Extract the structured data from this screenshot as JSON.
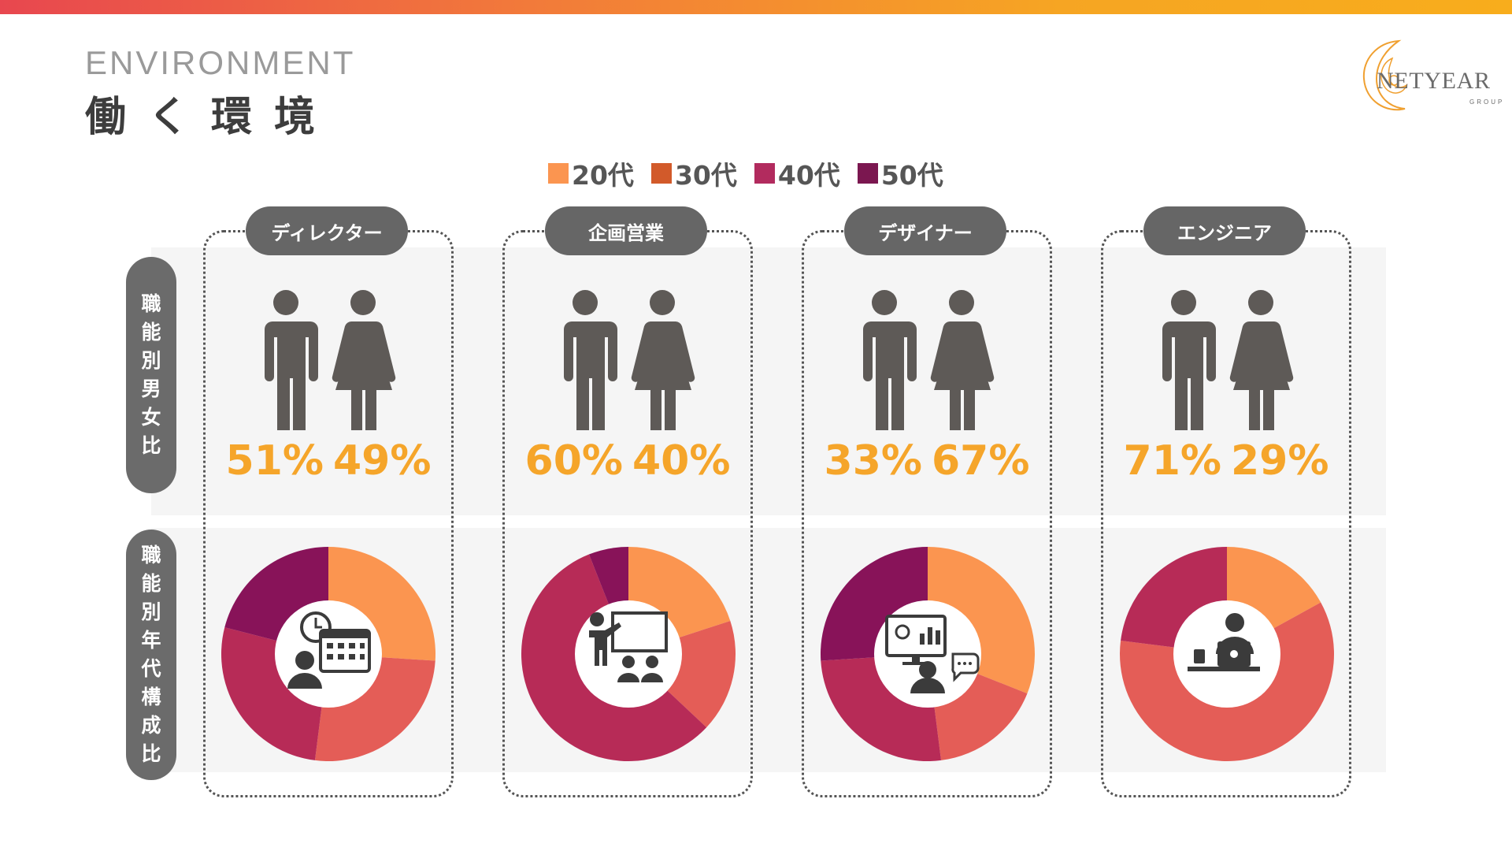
{
  "header": {
    "eyebrow": "ENVIRONMENT",
    "title": "働く環境",
    "logo_text": "NETYEAR",
    "logo_sub": "GROUP"
  },
  "legend": [
    {
      "label": "20代",
      "color": "#fb9550"
    },
    {
      "label": "30代",
      "color": "#d25a2a"
    },
    {
      "label": "40代",
      "color": "#b22b5e"
    },
    {
      "label": "50代",
      "color": "#7b1750"
    }
  ],
  "row_labels": {
    "gender": [
      "職",
      "能",
      "別",
      "男",
      "女",
      "比"
    ],
    "age": [
      "職",
      "能",
      "別",
      "年",
      "代",
      "構",
      "成",
      "比"
    ]
  },
  "colors": {
    "accent": "#f5a52a",
    "pill": "#666666",
    "icon": "#5e5a57",
    "donut": [
      "#fb9550",
      "#e45d57",
      "#b72b57",
      "#881359"
    ]
  },
  "columns": [
    {
      "name": "ディレクター",
      "male": "51%",
      "female": "49%",
      "icon": "calendar-clock-person-icon"
    },
    {
      "name": "企画営業",
      "male": "60%",
      "female": "40%",
      "icon": "presenter-audience-icon"
    },
    {
      "name": "デザイナー",
      "male": "33%",
      "female": "67%",
      "icon": "designer-monitor-chat-icon"
    },
    {
      "name": "エンジニア",
      "male": "71%",
      "female": "29%",
      "icon": "engineer-laptop-icon"
    }
  ],
  "chart_data": {
    "type": "pie",
    "categories": [
      "20代",
      "30代",
      "40代",
      "50代"
    ],
    "series": [
      {
        "name": "ディレクター",
        "values": [
          26,
          26,
          27,
          21
        ]
      },
      {
        "name": "企画営業",
        "values": [
          20,
          17,
          57,
          6
        ]
      },
      {
        "name": "デザイナー",
        "values": [
          31,
          17,
          26,
          26
        ]
      },
      {
        "name": "エンジニア",
        "values": [
          17,
          60,
          23,
          0
        ]
      }
    ]
  }
}
